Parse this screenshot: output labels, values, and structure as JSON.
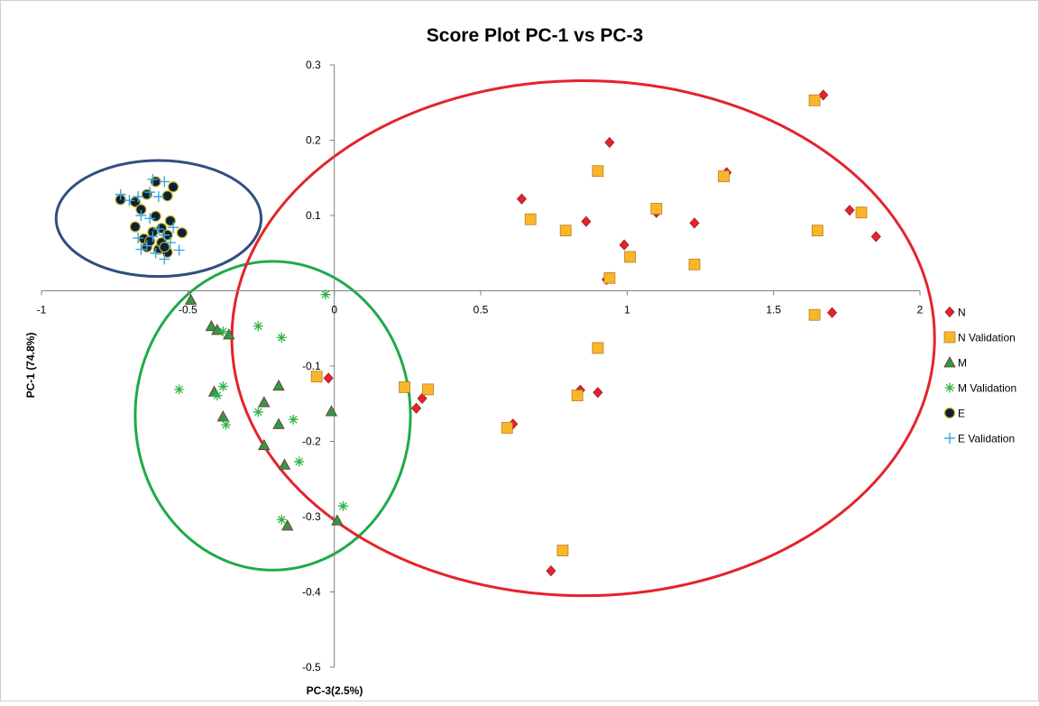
{
  "chart_data": {
    "type": "scatter",
    "title": "Score Plot PC-1 vs PC-3",
    "xlabel": "PC-3(2.5%)",
    "ylabel": "PC-1 (74.8%)",
    "xlim": [
      -1,
      2
    ],
    "ylim": [
      -0.5,
      0.3
    ],
    "x_ticks": [
      -1,
      -0.5,
      0,
      0.5,
      1,
      1.5,
      2
    ],
    "x_tick_labels": [
      "-1",
      "-0.5",
      "0",
      "0.5",
      "1",
      "1.5",
      "2"
    ],
    "y_ticks": [
      -0.5,
      -0.4,
      -0.3,
      -0.2,
      -0.1,
      0.1,
      0.2,
      0.3
    ],
    "y_tick_labels": [
      "-0.5",
      "-0.4",
      "-0.3",
      "-0.2",
      "-0.1",
      "0.1",
      "0.2",
      "0.3"
    ],
    "grid": false,
    "legend_position": "right",
    "series": [
      {
        "name": "N",
        "marker": "diamond",
        "color": "#e3242b",
        "stroke": "#9c1b25",
        "points": [
          [
            0.64,
            0.122
          ],
          [
            0.94,
            0.197
          ],
          [
            0.86,
            0.092
          ],
          [
            0.99,
            0.061
          ],
          [
            0.93,
            0.015
          ],
          [
            1.1,
            0.104
          ],
          [
            1.23,
            0.09
          ],
          [
            1.34,
            0.157
          ],
          [
            1.67,
            0.26
          ],
          [
            1.76,
            0.107
          ],
          [
            1.85,
            0.072
          ],
          [
            1.7,
            -0.029
          ],
          [
            0.3,
            -0.143
          ],
          [
            0.28,
            -0.156
          ],
          [
            0.61,
            -0.177
          ],
          [
            0.84,
            -0.132
          ],
          [
            0.9,
            -0.135
          ],
          [
            0.74,
            -0.372
          ],
          [
            -0.02,
            -0.116
          ]
        ]
      },
      {
        "name": "N Validation",
        "marker": "square",
        "color": "#f8b72a",
        "stroke": "#c07a1a",
        "points": [
          [
            0.67,
            0.095
          ],
          [
            0.79,
            0.08
          ],
          [
            0.9,
            0.159
          ],
          [
            0.94,
            0.017
          ],
          [
            1.01,
            0.045
          ],
          [
            1.1,
            0.109
          ],
          [
            1.23,
            0.035
          ],
          [
            1.33,
            0.152
          ],
          [
            1.64,
            0.253
          ],
          [
            1.8,
            0.104
          ],
          [
            1.65,
            0.08
          ],
          [
            1.64,
            -0.032
          ],
          [
            0.9,
            -0.076
          ],
          [
            0.24,
            -0.128
          ],
          [
            0.32,
            -0.131
          ],
          [
            0.83,
            -0.139
          ],
          [
            0.59,
            -0.182
          ],
          [
            0.78,
            -0.345
          ],
          [
            -0.06,
            -0.114
          ]
        ]
      },
      {
        "name": "M",
        "marker": "triangle",
        "color": "#2e9a47",
        "stroke": "#7a2a2a",
        "points": [
          [
            -0.49,
            -0.012
          ],
          [
            -0.42,
            -0.047
          ],
          [
            -0.4,
            -0.052
          ],
          [
            -0.36,
            -0.058
          ],
          [
            -0.41,
            -0.134
          ],
          [
            -0.38,
            -0.167
          ],
          [
            -0.24,
            -0.148
          ],
          [
            -0.19,
            -0.126
          ],
          [
            -0.19,
            -0.177
          ],
          [
            -0.24,
            -0.205
          ],
          [
            -0.17,
            -0.231
          ],
          [
            -0.01,
            -0.16
          ],
          [
            -0.16,
            -0.312
          ],
          [
            0.01,
            -0.305
          ]
        ]
      },
      {
        "name": "M Validation",
        "marker": "asterisk",
        "color": "#2fb54a",
        "stroke": "#2fb54a",
        "points": [
          [
            -0.03,
            -0.005
          ],
          [
            -0.26,
            -0.047
          ],
          [
            -0.18,
            -0.062
          ],
          [
            -0.38,
            -0.054
          ],
          [
            -0.53,
            -0.131
          ],
          [
            -0.38,
            -0.127
          ],
          [
            -0.4,
            -0.139
          ],
          [
            -0.37,
            -0.178
          ],
          [
            -0.26,
            -0.161
          ],
          [
            -0.14,
            -0.171
          ],
          [
            -0.12,
            -0.227
          ],
          [
            -0.18,
            -0.304
          ],
          [
            0.03,
            -0.286
          ]
        ]
      },
      {
        "name": "E",
        "marker": "circle",
        "color": "#0b2135",
        "stroke": "#c9b226",
        "points": [
          [
            -0.73,
            0.121
          ],
          [
            -0.68,
            0.118
          ],
          [
            -0.66,
            0.108
          ],
          [
            -0.64,
            0.128
          ],
          [
            -0.61,
            0.145
          ],
          [
            -0.57,
            0.126
          ],
          [
            -0.55,
            0.138
          ],
          [
            -0.68,
            0.085
          ],
          [
            -0.65,
            0.069
          ],
          [
            -0.62,
            0.078
          ],
          [
            -0.61,
            0.099
          ],
          [
            -0.59,
            0.083
          ],
          [
            -0.57,
            0.074
          ],
          [
            -0.56,
            0.093
          ],
          [
            -0.52,
            0.077
          ],
          [
            -0.64,
            0.058
          ],
          [
            -0.6,
            0.055
          ],
          [
            -0.57,
            0.051
          ],
          [
            -0.59,
            0.064
          ],
          [
            -0.63,
            0.066
          ],
          [
            -0.58,
            0.058
          ]
        ]
      },
      {
        "name": "E Validation",
        "marker": "plus",
        "color": "#3aa7e3",
        "stroke": "#3aa7e3",
        "points": [
          [
            -0.73,
            0.128
          ],
          [
            -0.7,
            0.12
          ],
          [
            -0.67,
            0.125
          ],
          [
            -0.63,
            0.131
          ],
          [
            -0.62,
            0.148
          ],
          [
            -0.58,
            0.145
          ],
          [
            -0.6,
            0.125
          ],
          [
            -0.66,
            0.1
          ],
          [
            -0.63,
            0.096
          ],
          [
            -0.6,
            0.082
          ],
          [
            -0.58,
            0.074
          ],
          [
            -0.55,
            0.084
          ],
          [
            -0.67,
            0.07
          ],
          [
            -0.64,
            0.06
          ],
          [
            -0.61,
            0.05
          ],
          [
            -0.58,
            0.042
          ],
          [
            -0.53,
            0.054
          ],
          [
            -0.62,
            0.072
          ],
          [
            -0.56,
            0.064
          ],
          [
            -0.66,
            0.055
          ]
        ]
      }
    ],
    "ellipses": [
      {
        "name": "E-cluster",
        "color": "#2f4f7f",
        "center": [
          -0.6,
          0.096
        ],
        "radius": [
          0.35,
          0.077
        ]
      },
      {
        "name": "M-cluster",
        "color": "#1faa4a",
        "center": [
          -0.21,
          -0.166
        ],
        "radius": [
          0.47,
          0.205
        ]
      },
      {
        "name": "N-cluster",
        "color": "#e3242b",
        "center": [
          0.85,
          -0.063
        ],
        "radius": [
          1.2,
          0.342
        ]
      }
    ]
  }
}
